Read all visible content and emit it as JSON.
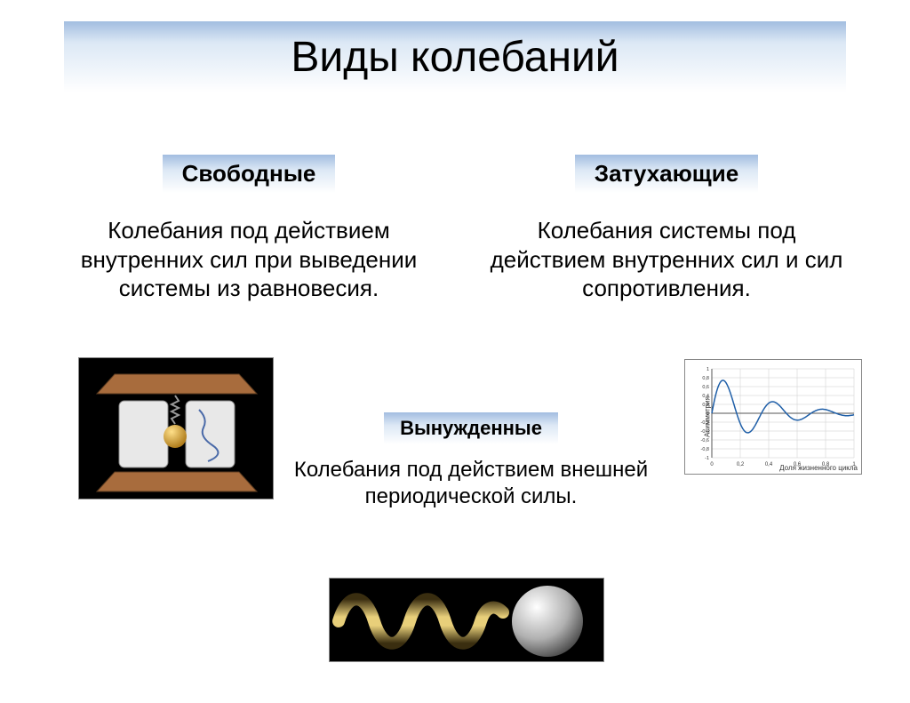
{
  "title": "Виды колебаний",
  "sections": {
    "free": {
      "header": "Свободные",
      "desc": "Колебания под действием внутренних сил при выведении системы из равновесия."
    },
    "damped": {
      "header": "Затухающие",
      "desc": "Колебания системы под действием внутренних сил и сил сопротивления."
    },
    "forced": {
      "header": "Вынужденные",
      "desc": "Колебания под действием внешней    периодической силы."
    }
  },
  "colors": {
    "header_gradient_top": "#a2bde0",
    "header_gradient_mid": "#dce8f5",
    "header_gradient_bottom": "#ffffff",
    "text": "#000000",
    "background": "#ffffff"
  },
  "typography": {
    "title_fontsize": 48,
    "subheader_fontsize": 26,
    "desc_fontsize": 26,
    "center_subheader_fontsize": 22,
    "center_desc_fontsize": 24
  },
  "graph": {
    "type": "line",
    "ylabel": "Асимметрия",
    "xlabel": "Доля жизненного цикла",
    "xlim": [
      0,
      1
    ],
    "ylim": [
      -1,
      1
    ],
    "xtick_step": 0.2,
    "ytick_step": 0.2,
    "xticks": [
      "0",
      "0,2",
      "0,4",
      "0,6",
      "0,8",
      "1"
    ],
    "yticks": [
      "-1",
      "-0,8",
      "-0,6",
      "-0,4",
      "-0,2",
      "0",
      "0,2",
      "0,4",
      "0,6",
      "0,8",
      "1"
    ],
    "line_color": "#1f5fa8",
    "grid_color": "#cccccc",
    "background_color": "#ffffff",
    "damping_factor": 3.0,
    "frequency": 18.0
  },
  "spring_image": {
    "type": "illustration",
    "description": "spring-mass-ball",
    "ball_color": "#b0b0b0",
    "spring_color": "#c9a94a",
    "background": "#000000"
  },
  "device_image": {
    "type": "illustration",
    "description": "spring-pendulum-apparatus",
    "wood_color": "#a86c3d",
    "frame_color": "#e8e8e8",
    "ball_color": "#d4a23c",
    "background": "#000000"
  }
}
